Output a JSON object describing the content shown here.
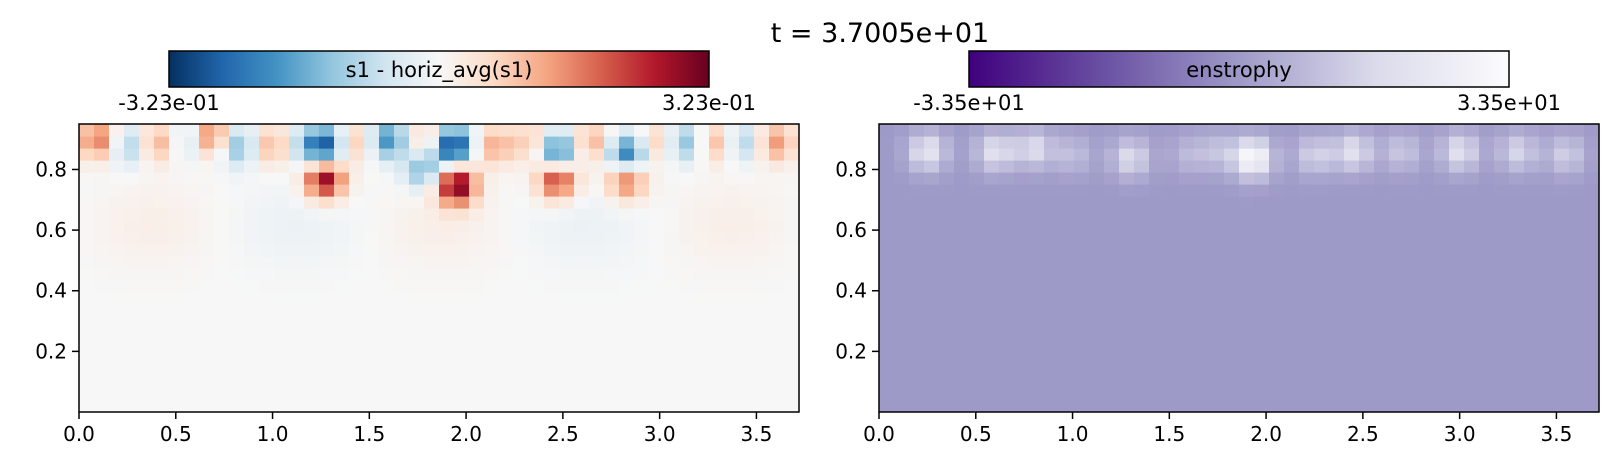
{
  "figure": {
    "title": "t = 3.7005e+01"
  },
  "chart_data": [
    {
      "type": "heatmap",
      "colorbar": {
        "label": "s1 - horiz_avg(s1)",
        "min_label": "-3.23e-01",
        "max_label": "3.23e-01",
        "vmin": -0.323,
        "vmax": 0.323,
        "colormap": "RdBu_r"
      },
      "xlim": [
        0,
        3.72
      ],
      "ylim": [
        0,
        0.95
      ],
      "xticks": [
        0.0,
        0.5,
        1.0,
        1.5,
        2.0,
        2.5,
        3.0,
        3.5
      ],
      "xtick_labels": [
        "0.0",
        "0.5",
        "1.0",
        "1.5",
        "2.0",
        "2.5",
        "3.0",
        "3.5"
      ],
      "yticks": [
        0.2,
        0.4,
        0.6,
        0.8
      ],
      "ytick_labels": [
        "0.2",
        "0.4",
        "0.6",
        "0.8"
      ],
      "grid": false,
      "features": [
        {
          "x": 0.1,
          "y": 0.9,
          "value": 0.18
        },
        {
          "x": 0.25,
          "y": 0.88,
          "value": -0.12
        },
        {
          "x": 0.4,
          "y": 0.89,
          "value": 0.12
        },
        {
          "x": 0.58,
          "y": 0.9,
          "value": -0.1
        },
        {
          "x": 0.68,
          "y": 0.91,
          "value": 0.2
        },
        {
          "x": 0.82,
          "y": 0.88,
          "value": -0.15
        },
        {
          "x": 1.0,
          "y": 0.88,
          "value": 0.12
        },
        {
          "x": 1.15,
          "y": 0.88,
          "value": -0.08
        },
        {
          "x": 1.27,
          "y": 0.88,
          "value": -0.28
        },
        {
          "x": 1.27,
          "y": 0.77,
          "value": 0.3
        },
        {
          "x": 1.42,
          "y": 0.89,
          "value": 0.1
        },
        {
          "x": 1.6,
          "y": 0.9,
          "value": -0.2
        },
        {
          "x": 1.78,
          "y": 0.8,
          "value": -0.15
        },
        {
          "x": 1.8,
          "y": 0.9,
          "value": 0.1
        },
        {
          "x": 1.93,
          "y": 0.88,
          "value": -0.32
        },
        {
          "x": 1.95,
          "y": 0.75,
          "value": 0.323
        },
        {
          "x": 2.15,
          "y": 0.88,
          "value": 0.12
        },
        {
          "x": 2.35,
          "y": 0.89,
          "value": 0.1
        },
        {
          "x": 2.47,
          "y": 0.86,
          "value": -0.25
        },
        {
          "x": 2.47,
          "y": 0.77,
          "value": 0.25
        },
        {
          "x": 2.65,
          "y": 0.89,
          "value": 0.12
        },
        {
          "x": 2.83,
          "y": 0.85,
          "value": -0.25
        },
        {
          "x": 2.83,
          "y": 0.77,
          "value": 0.2
        },
        {
          "x": 3.0,
          "y": 0.89,
          "value": 0.1
        },
        {
          "x": 3.12,
          "y": 0.89,
          "value": -0.15
        },
        {
          "x": 3.3,
          "y": 0.89,
          "value": 0.12
        },
        {
          "x": 3.42,
          "y": 0.89,
          "value": -0.12
        },
        {
          "x": 3.6,
          "y": 0.89,
          "value": 0.14
        }
      ]
    },
    {
      "type": "heatmap",
      "colorbar": {
        "label": "enstrophy",
        "min_label": "-3.35e+01",
        "max_label": "3.35e+01",
        "vmin": -33.5,
        "vmax": 33.5,
        "colormap": "Purples_r"
      },
      "xlim": [
        0,
        3.72
      ],
      "ylim": [
        0,
        0.95
      ],
      "xticks": [
        0.0,
        0.5,
        1.0,
        1.5,
        2.0,
        2.5,
        3.0,
        3.5
      ],
      "xtick_labels": [
        "0.0",
        "0.5",
        "1.0",
        "1.5",
        "2.0",
        "2.5",
        "3.0",
        "3.5"
      ],
      "yticks": [
        0.2,
        0.4,
        0.6,
        0.8
      ],
      "ytick_labels": [
        "0.2",
        "0.4",
        "0.6",
        "0.8"
      ],
      "grid": false,
      "background_value": 0,
      "features": [
        {
          "x": 0.25,
          "y": 0.86,
          "value": 22
        },
        {
          "x": 0.6,
          "y": 0.86,
          "value": 20
        },
        {
          "x": 0.8,
          "y": 0.87,
          "value": 18
        },
        {
          "x": 1.0,
          "y": 0.85,
          "value": 10
        },
        {
          "x": 1.3,
          "y": 0.84,
          "value": 18
        },
        {
          "x": 1.6,
          "y": 0.85,
          "value": 8
        },
        {
          "x": 1.75,
          "y": 0.86,
          "value": 10
        },
        {
          "x": 1.93,
          "y": 0.84,
          "value": 33.5
        },
        {
          "x": 2.25,
          "y": 0.85,
          "value": 15
        },
        {
          "x": 2.45,
          "y": 0.86,
          "value": 20
        },
        {
          "x": 2.7,
          "y": 0.86,
          "value": 12
        },
        {
          "x": 3.0,
          "y": 0.86,
          "value": 20
        },
        {
          "x": 3.3,
          "y": 0.86,
          "value": 16
        },
        {
          "x": 3.55,
          "y": 0.85,
          "value": 14
        }
      ]
    }
  ]
}
